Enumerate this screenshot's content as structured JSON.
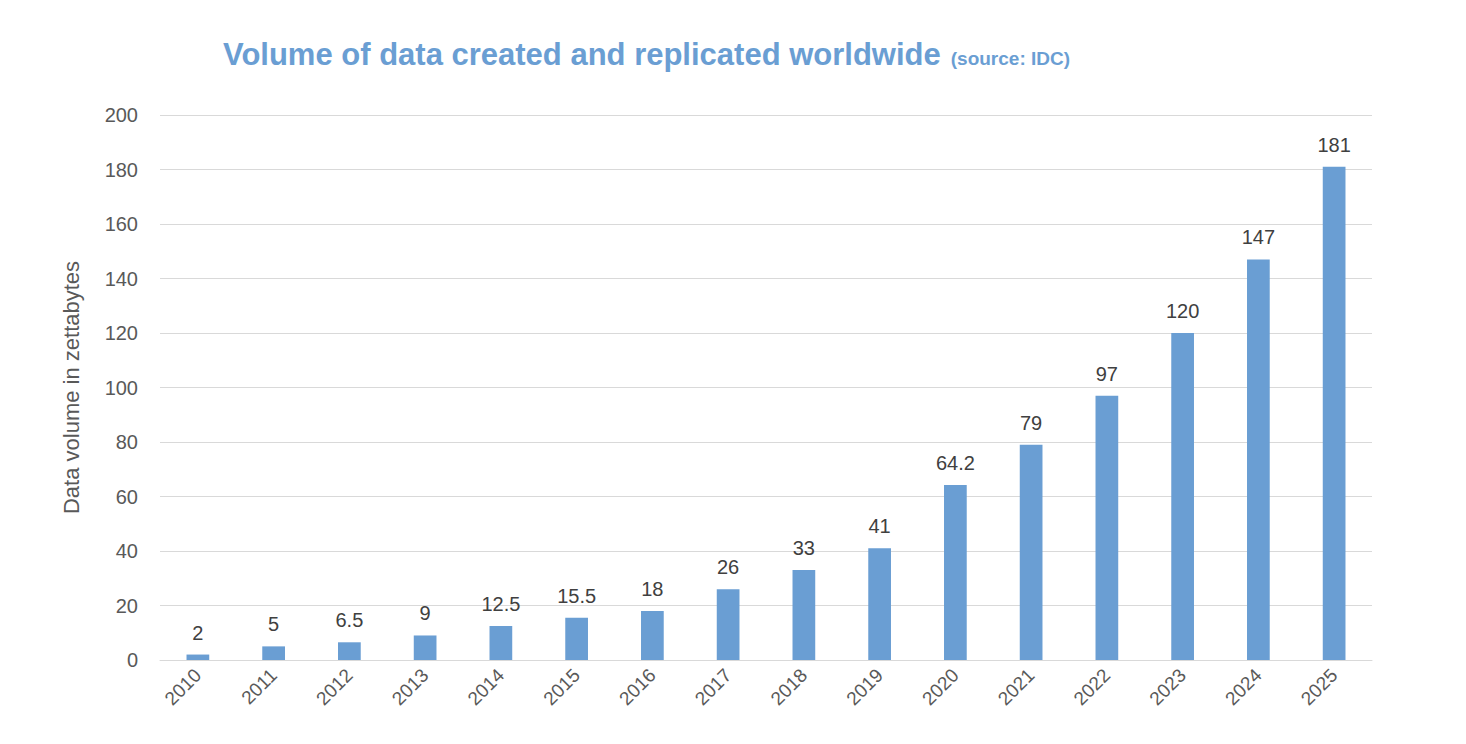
{
  "chart_data": {
    "type": "bar",
    "title": "Volume of data created and replicated worldwide",
    "subtitle": "(source: IDC)",
    "y_label": "Data volume in zettabytes",
    "categories": [
      "2010",
      "2011",
      "2012",
      "2013",
      "2014",
      "2015",
      "2016",
      "2017",
      "2018",
      "2019",
      "2020",
      "2021",
      "2022",
      "2023",
      "2024",
      "2025"
    ],
    "values": [
      2,
      5,
      6.5,
      9,
      12.5,
      15.5,
      18,
      26,
      33,
      41,
      64.2,
      79,
      97,
      120,
      147,
      181
    ],
    "color": "#6a9ed3",
    "ylim": [
      0,
      200
    ],
    "yticks": [
      0,
      20,
      40,
      60,
      80,
      100,
      120,
      140,
      160,
      180,
      200
    ],
    "grid": true,
    "data_labels": true
  }
}
